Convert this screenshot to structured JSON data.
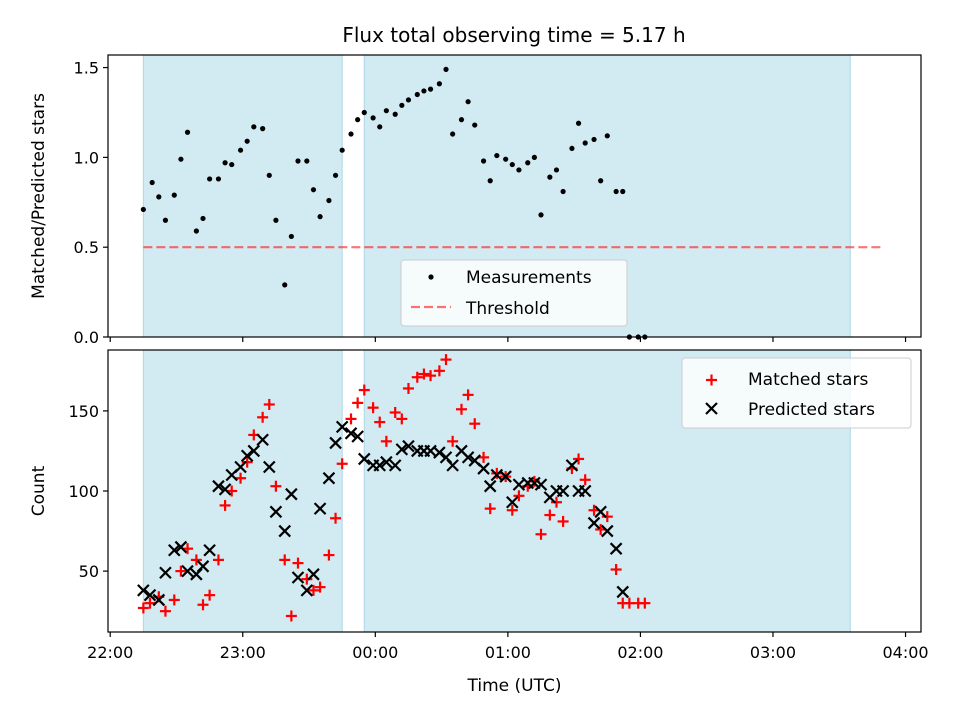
{
  "title": "Flux total observing time = 5.17 h",
  "colors": {
    "shade": "#add8e6",
    "threshold": "#ff0000",
    "matched": "#ff0000",
    "predicted": "#000000",
    "measurements": "#000000"
  },
  "chart_data": [
    {
      "type": "scatter",
      "ylabel": "Matched/Predicted stars",
      "xlabel": "",
      "x_is_time_axis": true,
      "xlim": [
        "21:59",
        "04:07"
      ],
      "ylim": [
        0,
        1.57
      ],
      "yticks": [
        0.0,
        0.5,
        1.0,
        1.5
      ],
      "ytick_labels": [
        "0.0",
        "0.5",
        "1.0",
        "1.5"
      ],
      "observing_windows": [
        [
          "22:15",
          "23:45"
        ],
        [
          "23:55",
          "03:35"
        ]
      ],
      "legend": {
        "placement": "lower-center",
        "entries": [
          "Measurements",
          "Threshold"
        ]
      },
      "threshold": {
        "name": "Threshold",
        "y": 0.5,
        "x_range": [
          "22:15",
          "03:50"
        ]
      },
      "series": [
        {
          "name": "Measurements",
          "points": [
            [
              "22:15",
              0.71
            ],
            [
              "22:19",
              0.86
            ],
            [
              "22:22",
              0.78
            ],
            [
              "22:25",
              0.65
            ],
            [
              "22:29",
              0.79
            ],
            [
              "22:32",
              0.99
            ],
            [
              "22:35",
              1.14
            ],
            [
              "22:39",
              0.59
            ],
            [
              "22:42",
              0.66
            ],
            [
              "22:45",
              0.88
            ],
            [
              "22:49",
              0.88
            ],
            [
              "22:52",
              0.97
            ],
            [
              "22:55",
              0.96
            ],
            [
              "22:59",
              1.04
            ],
            [
              "23:02",
              1.09
            ],
            [
              "23:05",
              1.17
            ],
            [
              "23:09",
              1.16
            ],
            [
              "23:12",
              0.9
            ],
            [
              "23:15",
              0.65
            ],
            [
              "23:19",
              0.29
            ],
            [
              "23:22",
              0.56
            ],
            [
              "23:25",
              0.98
            ],
            [
              "23:29",
              0.98
            ],
            [
              "23:32",
              0.82
            ],
            [
              "23:35",
              0.67
            ],
            [
              "23:39",
              0.76
            ],
            [
              "23:42",
              0.9
            ],
            [
              "23:45",
              1.04
            ],
            [
              "23:49",
              1.13
            ],
            [
              "23:52",
              1.21
            ],
            [
              "23:55",
              1.25
            ],
            [
              "23:59",
              1.22
            ],
            [
              "00:02",
              1.17
            ],
            [
              "00:05",
              1.26
            ],
            [
              "00:09",
              1.24
            ],
            [
              "00:12",
              1.29
            ],
            [
              "00:15",
              1.32
            ],
            [
              "00:19",
              1.35
            ],
            [
              "00:22",
              1.37
            ],
            [
              "00:25",
              1.38
            ],
            [
              "00:29",
              1.41
            ],
            [
              "00:32",
              1.49
            ],
            [
              "00:35",
              1.13
            ],
            [
              "00:39",
              1.21
            ],
            [
              "00:42",
              1.31
            ],
            [
              "00:45",
              1.18
            ],
            [
              "00:49",
              0.98
            ],
            [
              "00:52",
              0.87
            ],
            [
              "00:55",
              1.01
            ],
            [
              "00:59",
              0.99
            ],
            [
              "01:02",
              0.96
            ],
            [
              "01:05",
              0.93
            ],
            [
              "01:09",
              0.97
            ],
            [
              "01:12",
              1.0
            ],
            [
              "01:15",
              0.68
            ],
            [
              "01:19",
              0.89
            ],
            [
              "01:22",
              0.93
            ],
            [
              "01:25",
              0.81
            ],
            [
              "01:29",
              1.05
            ],
            [
              "01:32",
              1.19
            ],
            [
              "01:35",
              1.08
            ],
            [
              "01:39",
              1.1
            ],
            [
              "01:42",
              0.87
            ],
            [
              "01:45",
              1.12
            ],
            [
              "01:49",
              0.81
            ],
            [
              "01:52",
              0.81
            ],
            [
              "01:55",
              0.0
            ],
            [
              "01:59",
              0.0
            ],
            [
              "02:02",
              0.0
            ]
          ]
        }
      ]
    },
    {
      "type": "scatter",
      "ylabel": "Count",
      "xlabel": "Time (UTC)",
      "x_is_time_axis": true,
      "xlim": [
        "21:59",
        "04:07"
      ],
      "ylim": [
        12,
        188
      ],
      "yticks": [
        50,
        100,
        150
      ],
      "ytick_labels": [
        "50",
        "100",
        "150"
      ],
      "xticks": [
        "22:00",
        "23:00",
        "00:00",
        "01:00",
        "02:00",
        "03:00",
        "04:00"
      ],
      "xtick_labels": [
        "22:00",
        "23:00",
        "00:00",
        "01:00",
        "02:00",
        "03:00",
        "04:00"
      ],
      "observing_windows": [
        [
          "22:15",
          "23:45"
        ],
        [
          "23:55",
          "03:35"
        ]
      ],
      "legend": {
        "placement": "top-right",
        "entries": [
          "Matched stars",
          "Predicted stars"
        ]
      },
      "series": [
        {
          "name": "Matched stars",
          "marker": "plus",
          "points": [
            [
              "22:15",
              27
            ],
            [
              "22:18",
              30
            ],
            [
              "22:22",
              34
            ],
            [
              "22:25",
              25
            ],
            [
              "22:29",
              32
            ],
            [
              "22:32",
              50
            ],
            [
              "22:35",
              64
            ],
            [
              "22:39",
              57
            ],
            [
              "22:42",
              29
            ],
            [
              "22:45",
              35
            ],
            [
              "22:49",
              57
            ],
            [
              "22:52",
              91
            ],
            [
              "22:55",
              100
            ],
            [
              "22:59",
              108
            ],
            [
              "23:02",
              118
            ],
            [
              "23:05",
              135
            ],
            [
              "23:09",
              146
            ],
            [
              "23:12",
              154
            ],
            [
              "23:15",
              103
            ],
            [
              "23:19",
              57
            ],
            [
              "23:22",
              22
            ],
            [
              "23:25",
              55
            ],
            [
              "23:29",
              45
            ],
            [
              "23:32",
              38
            ],
            [
              "23:35",
              40
            ],
            [
              "23:39",
              60
            ],
            [
              "23:42",
              83
            ],
            [
              "23:45",
              117
            ],
            [
              "23:49",
              145
            ],
            [
              "23:52",
              155
            ],
            [
              "23:55",
              163
            ],
            [
              "23:59",
              152
            ],
            [
              "00:02",
              143
            ],
            [
              "00:05",
              131
            ],
            [
              "00:09",
              149
            ],
            [
              "00:12",
              145
            ],
            [
              "00:15",
              164
            ],
            [
              "00:19",
              171
            ],
            [
              "00:22",
              173
            ],
            [
              "00:25",
              172
            ],
            [
              "00:29",
              175
            ],
            [
              "00:32",
              182
            ],
            [
              "00:35",
              131
            ],
            [
              "00:39",
              151
            ],
            [
              "00:42",
              160
            ],
            [
              "00:45",
              142
            ],
            [
              "00:49",
              121
            ],
            [
              "00:52",
              89
            ],
            [
              "00:55",
              111
            ],
            [
              "00:59",
              109
            ],
            [
              "01:02",
              88
            ],
            [
              "01:05",
              97
            ],
            [
              "01:09",
              103
            ],
            [
              "01:12",
              106
            ],
            [
              "01:15",
              73
            ],
            [
              "01:19",
              85
            ],
            [
              "01:22",
              93
            ],
            [
              "01:25",
              81
            ],
            [
              "01:29",
              114
            ],
            [
              "01:32",
              120
            ],
            [
              "01:35",
              107
            ],
            [
              "01:39",
              88
            ],
            [
              "01:42",
              76
            ],
            [
              "01:45",
              84
            ],
            [
              "01:49",
              51
            ],
            [
              "01:52",
              30
            ],
            [
              "01:55",
              30
            ],
            [
              "01:59",
              30
            ],
            [
              "02:02",
              30
            ]
          ]
        },
        {
          "name": "Predicted stars",
          "marker": "x",
          "points": [
            [
              "22:15",
              38
            ],
            [
              "22:18",
              35
            ],
            [
              "22:22",
              32
            ],
            [
              "22:25",
              49
            ],
            [
              "22:29",
              63
            ],
            [
              "22:32",
              65
            ],
            [
              "22:35",
              50
            ],
            [
              "22:39",
              48
            ],
            [
              "22:42",
              53
            ],
            [
              "22:45",
              63
            ],
            [
              "22:49",
              103
            ],
            [
              "22:52",
              101
            ],
            [
              "22:55",
              110
            ],
            [
              "22:59",
              115
            ],
            [
              "23:02",
              122
            ],
            [
              "23:05",
              125
            ],
            [
              "23:09",
              132
            ],
            [
              "23:12",
              115
            ],
            [
              "23:15",
              87
            ],
            [
              "23:19",
              75
            ],
            [
              "23:22",
              98
            ],
            [
              "23:25",
              46
            ],
            [
              "23:29",
              38
            ],
            [
              "23:32",
              48
            ],
            [
              "23:35",
              89
            ],
            [
              "23:39",
              108
            ],
            [
              "23:42",
              130
            ],
            [
              "23:45",
              140
            ],
            [
              "23:49",
              136
            ],
            [
              "23:52",
              134
            ],
            [
              "23:55",
              120
            ],
            [
              "23:59",
              116
            ],
            [
              "00:02",
              116
            ],
            [
              "00:05",
              118
            ],
            [
              "00:09",
              116
            ],
            [
              "00:12",
              126
            ],
            [
              "00:15",
              128
            ],
            [
              "00:19",
              125
            ],
            [
              "00:22",
              125
            ],
            [
              "00:25",
              125
            ],
            [
              "00:29",
              124
            ],
            [
              "00:32",
              121
            ],
            [
              "00:35",
              116
            ],
            [
              "00:39",
              125
            ],
            [
              "00:42",
              121
            ],
            [
              "00:45",
              119
            ],
            [
              "00:49",
              114
            ],
            [
              "00:52",
              103
            ],
            [
              "00:55",
              110
            ],
            [
              "00:59",
              109
            ],
            [
              "01:02",
              93
            ],
            [
              "01:05",
              104
            ],
            [
              "01:09",
              105
            ],
            [
              "01:12",
              105
            ],
            [
              "01:15",
              104
            ],
            [
              "01:19",
              96
            ],
            [
              "01:22",
              100
            ],
            [
              "01:25",
              100
            ],
            [
              "01:29",
              116
            ],
            [
              "01:32",
              100
            ],
            [
              "01:35",
              100
            ],
            [
              "01:39",
              80
            ],
            [
              "01:42",
              87
            ],
            [
              "01:45",
              75
            ],
            [
              "01:49",
              64
            ],
            [
              "01:52",
              37
            ]
          ]
        }
      ]
    }
  ]
}
